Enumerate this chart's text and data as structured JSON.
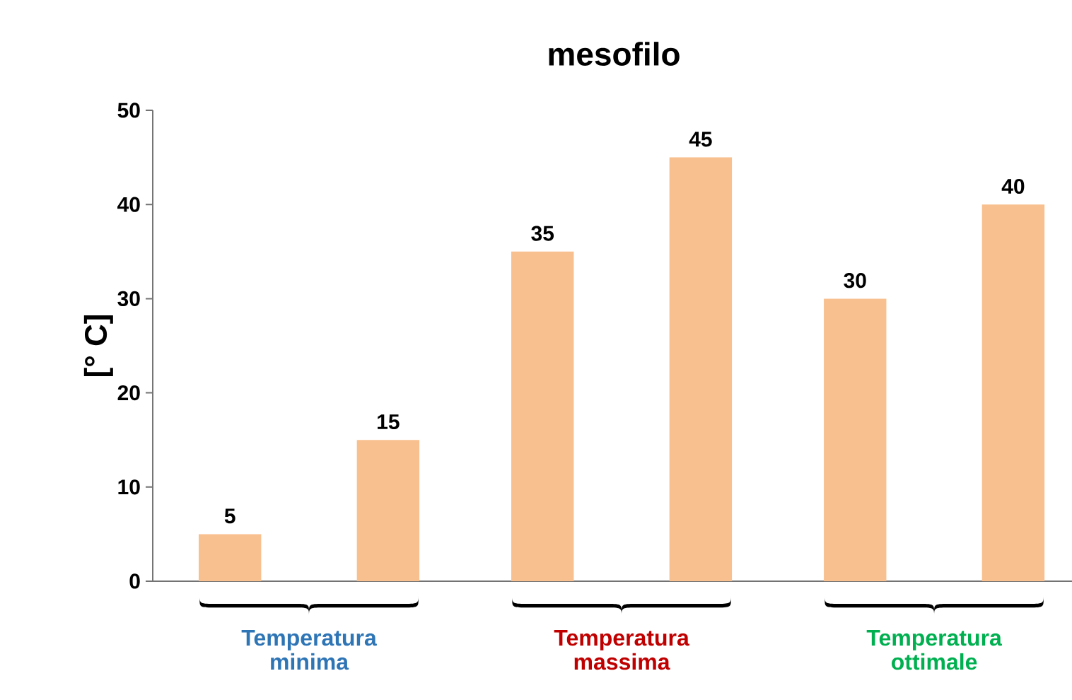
{
  "chart_data": {
    "type": "bar",
    "title": "mesofilo",
    "ylabel": "[° C]",
    "categories": [
      "Temperatura minima",
      "Temperatura massima",
      "Temperatura ottimale"
    ],
    "series": [
      {
        "color": "#f9c08f",
        "values": [
          5,
          35,
          30
        ]
      },
      {
        "color": "#f9c08f",
        "values": [
          15,
          45,
          40
        ]
      }
    ],
    "ylim": [
      0,
      50
    ],
    "yticks": [
      0,
      10,
      20,
      30,
      40,
      50
    ],
    "data_labels": true
  }
}
